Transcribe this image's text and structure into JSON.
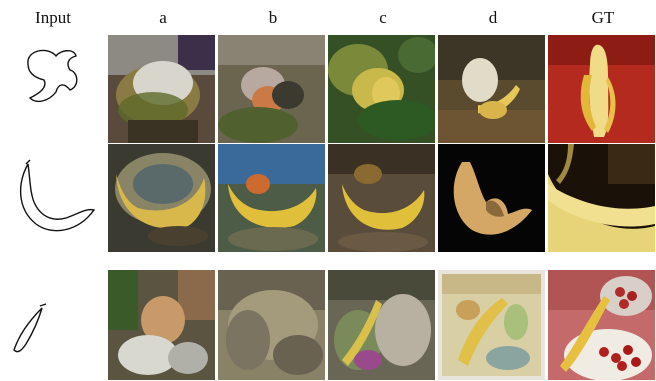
{
  "figure": {
    "columns": [
      "Input",
      "a",
      "b",
      "c",
      "d",
      "GT"
    ]
  }
}
